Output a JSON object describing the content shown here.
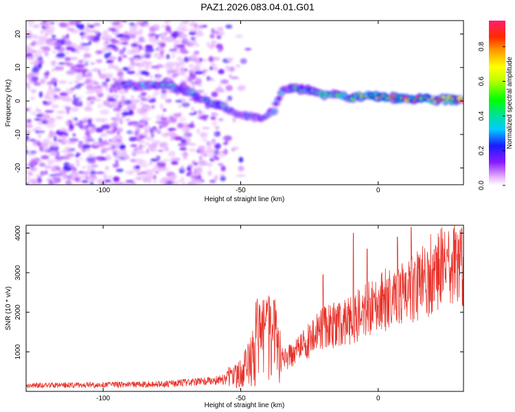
{
  "chart_data": [
    {
      "type": "heatmap",
      "title": "PAZ1.2026.083.04.01.G01",
      "xlabel": "Height of straight line (km)",
      "ylabel": "Frequency (Hz)",
      "xlim": [
        -128,
        31
      ],
      "ylim": [
        -25,
        24
      ],
      "xticks": [
        -100,
        -50,
        0
      ],
      "xtick_labels": [
        "-100",
        "-50",
        "0"
      ],
      "yticks": [
        -20,
        -10,
        0,
        10,
        20
      ],
      "ytick_labels": [
        "-20",
        "-10",
        "0",
        "10",
        "20"
      ],
      "ridge": {
        "x": [
          -95,
          -85,
          -78,
          -70,
          -62,
          -56,
          -50,
          -46,
          -42,
          -38,
          -35,
          -30,
          -20,
          -10,
          -5,
          0,
          10,
          20,
          31
        ],
        "freq": [
          5,
          4.5,
          5,
          3,
          0,
          -2,
          -4,
          -5,
          -5,
          -3,
          3,
          4,
          2,
          1,
          1.5,
          1.5,
          0.5,
          0.5,
          0.5
        ],
        "peak_amplitude": [
          0.25,
          0.35,
          0.45,
          0.4,
          0.4,
          0.35,
          0.3,
          0.3,
          0.3,
          0.3,
          0.35,
          0.45,
          0.5,
          0.55,
          0.6,
          0.9,
          0.9,
          0.85,
          0.85
        ]
      },
      "colorbar": {
        "label": "Normalized spectral amplitude",
        "range": [
          0,
          0.95
        ],
        "ticks": [
          0.0,
          0.2,
          0.4,
          0.6,
          0.8
        ],
        "tick_labels": [
          "0.0",
          "0.2",
          "0.4",
          "0.6",
          "0.8"
        ]
      }
    },
    {
      "type": "line",
      "xlabel": "Height of straight line (km)",
      "ylabel": "SNR (10 * v/v)",
      "xlim": [
        -128,
        31
      ],
      "ylim": [
        0,
        4200
      ],
      "xticks": [
        -100,
        -50,
        0
      ],
      "xtick_labels": [
        "-100",
        "-50",
        "0"
      ],
      "yticks": [
        1000,
        2000,
        3000,
        4000
      ],
      "ytick_labels": [
        "1000",
        "2000",
        "3000",
        "4000"
      ],
      "color": "#e8322a",
      "trend": {
        "x": [
          -128,
          -80,
          -60,
          -55,
          -50,
          -47,
          -44,
          -42,
          -40,
          -38,
          -36,
          -34,
          -30,
          -25,
          -20,
          -15,
          -10,
          -5,
          0,
          5,
          10,
          15,
          20,
          25,
          31
        ],
        "snr": [
          150,
          180,
          260,
          320,
          450,
          700,
          1000,
          1500,
          1400,
          1200,
          900,
          800,
          1000,
          1300,
          1600,
          1700,
          1800,
          2000,
          2200,
          2400,
          2500,
          2700,
          3000,
          3150,
          3300
        ]
      }
    }
  ]
}
